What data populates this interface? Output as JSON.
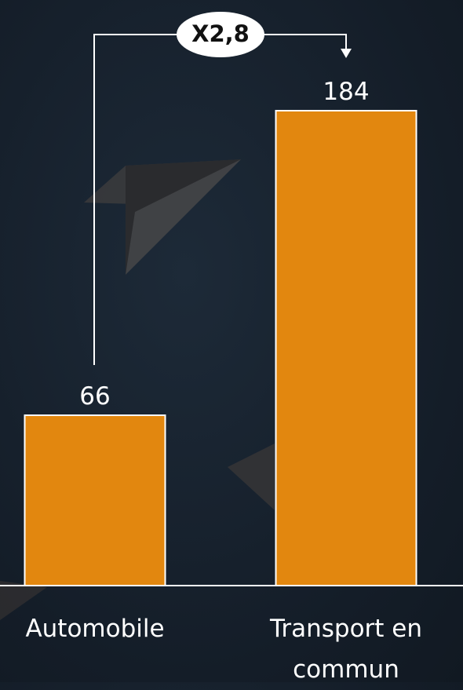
{
  "chart_data": {
    "type": "bar",
    "categories": [
      "Automobile",
      "Transport en commun"
    ],
    "values": [
      66,
      184
    ],
    "value_labels": [
      "66",
      "184"
    ],
    "color": "#e2870f",
    "annotation": "X2,8"
  }
}
